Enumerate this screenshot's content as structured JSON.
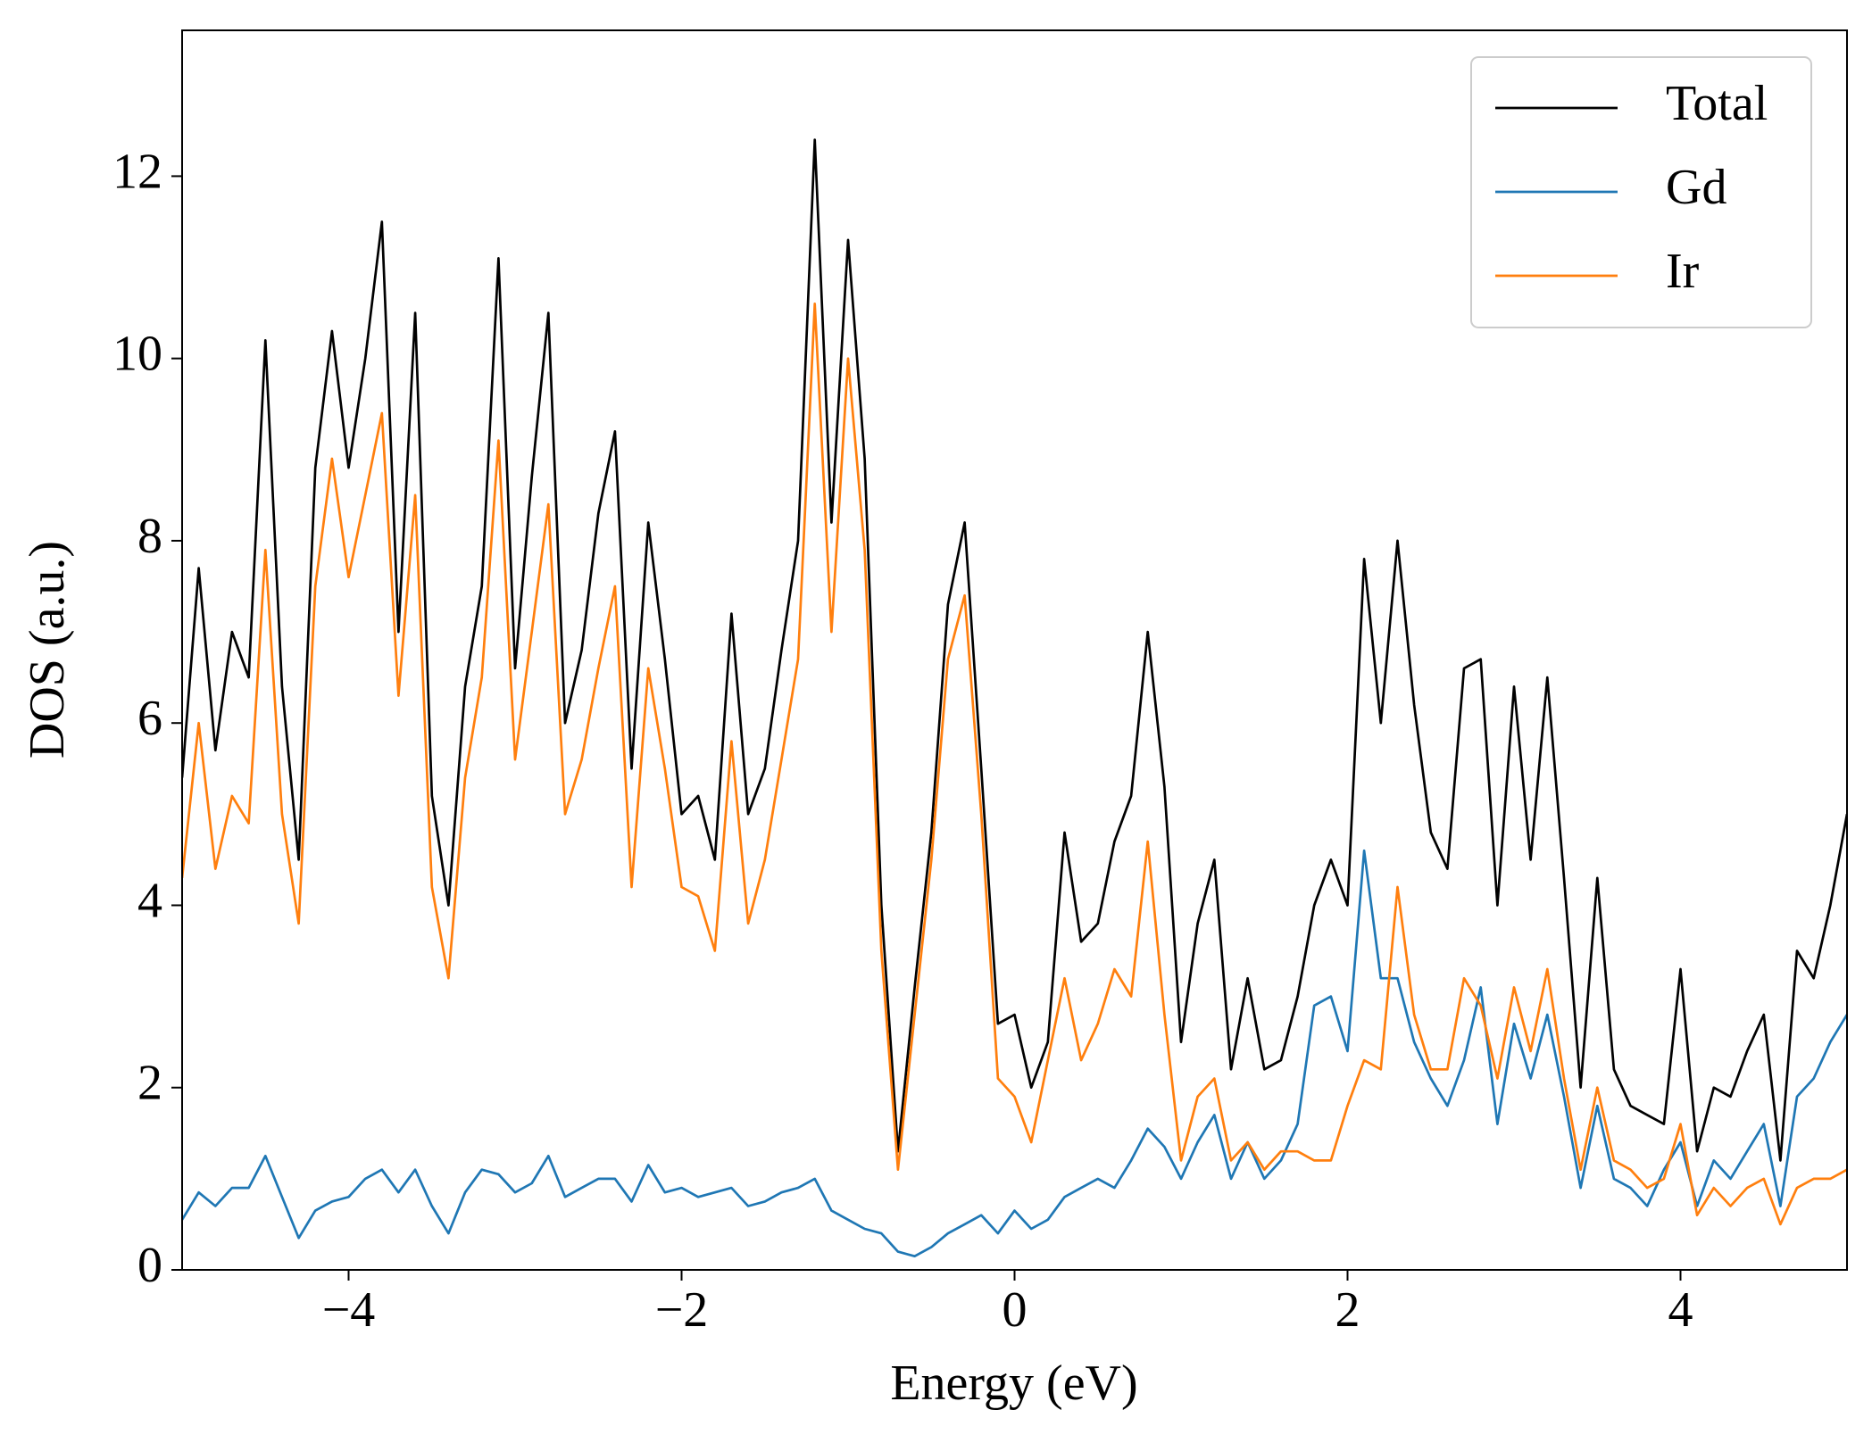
{
  "chart_data": {
    "type": "line",
    "xlabel": "Energy (eV)",
    "ylabel": "DOS (a.u.)",
    "x": [
      -5.0,
      -4.9,
      -4.8,
      -4.7,
      -4.6,
      -4.5,
      -4.4,
      -4.3,
      -4.2,
      -4.1,
      -4.0,
      -3.9,
      -3.8,
      -3.7,
      -3.6,
      -3.5,
      -3.4,
      -3.3,
      -3.2,
      -3.1,
      -3.0,
      -2.9,
      -2.8,
      -2.7,
      -2.6,
      -2.5,
      -2.4,
      -2.3,
      -2.2,
      -2.1,
      -2.0,
      -1.9,
      -1.8,
      -1.7,
      -1.6,
      -1.5,
      -1.4,
      -1.3,
      -1.2,
      -1.1,
      -1.0,
      -0.9,
      -0.8,
      -0.7,
      -0.6,
      -0.5,
      -0.4,
      -0.3,
      -0.2,
      -0.1,
      0.0,
      0.1,
      0.2,
      0.3,
      0.4,
      0.5,
      0.6,
      0.7,
      0.8,
      0.9,
      1.0,
      1.1,
      1.2,
      1.3,
      1.4,
      1.5,
      1.6,
      1.7,
      1.8,
      1.9,
      2.0,
      2.1,
      2.2,
      2.3,
      2.4,
      2.5,
      2.6,
      2.7,
      2.8,
      2.9,
      3.0,
      3.1,
      3.2,
      3.3,
      3.4,
      3.5,
      3.6,
      3.7,
      3.8,
      3.9,
      4.0,
      4.1,
      4.2,
      4.3,
      4.4,
      4.5,
      4.6,
      4.7,
      4.8,
      4.9,
      5.0
    ],
    "series": [
      {
        "name": "Total",
        "color": "#000000",
        "values": [
          5.4,
          7.7,
          5.7,
          7.0,
          6.5,
          10.2,
          6.4,
          4.5,
          8.8,
          10.3,
          8.8,
          10.0,
          11.5,
          7.0,
          10.5,
          5.2,
          4.0,
          6.4,
          7.5,
          11.1,
          6.6,
          8.7,
          10.5,
          6.0,
          6.8,
          8.3,
          9.2,
          5.5,
          8.2,
          6.7,
          5.0,
          5.2,
          4.5,
          7.2,
          5.0,
          5.5,
          6.8,
          8.0,
          12.4,
          8.2,
          11.3,
          8.9,
          4.0,
          1.3,
          3.1,
          4.8,
          7.3,
          8.2,
          5.5,
          2.7,
          2.8,
          2.0,
          2.5,
          4.8,
          3.6,
          3.8,
          4.7,
          5.2,
          7.0,
          5.3,
          2.5,
          3.8,
          4.5,
          2.2,
          3.2,
          2.2,
          2.3,
          3.0,
          4.0,
          4.5,
          4.0,
          7.8,
          6.0,
          8.0,
          6.2,
          4.8,
          4.4,
          6.6,
          6.7,
          4.0,
          6.4,
          4.5,
          6.5,
          4.3,
          2.0,
          4.3,
          2.2,
          1.8,
          1.7,
          1.6,
          3.3,
          1.3,
          2.0,
          1.9,
          2.4,
          2.8,
          1.2,
          3.5,
          3.2,
          4.0,
          5.0
        ]
      },
      {
        "name": "Gd",
        "color": "#1f77b4",
        "values": [
          0.55,
          0.85,
          0.7,
          0.9,
          0.9,
          1.25,
          0.8,
          0.35,
          0.65,
          0.75,
          0.8,
          1.0,
          1.1,
          0.85,
          1.1,
          0.7,
          0.4,
          0.85,
          1.1,
          1.05,
          0.85,
          0.95,
          1.25,
          0.8,
          0.9,
          1.0,
          1.0,
          0.75,
          1.15,
          0.85,
          0.9,
          0.8,
          0.85,
          0.9,
          0.7,
          0.75,
          0.85,
          0.9,
          1.0,
          0.65,
          0.55,
          0.45,
          0.4,
          0.2,
          0.15,
          0.25,
          0.4,
          0.5,
          0.6,
          0.4,
          0.65,
          0.45,
          0.55,
          0.8,
          0.9,
          1.0,
          0.9,
          1.2,
          1.55,
          1.35,
          1.0,
          1.4,
          1.7,
          1.0,
          1.4,
          1.0,
          1.2,
          1.6,
          2.9,
          3.0,
          2.4,
          4.6,
          3.2,
          3.2,
          2.5,
          2.1,
          1.8,
          2.3,
          3.1,
          1.6,
          2.7,
          2.1,
          2.8,
          1.9,
          0.9,
          1.8,
          1.0,
          0.9,
          0.7,
          1.1,
          1.4,
          0.7,
          1.2,
          1.0,
          1.3,
          1.6,
          0.7,
          1.9,
          2.1,
          2.5,
          2.8
        ]
      },
      {
        "name": "Ir",
        "color": "#ff7f0e",
        "values": [
          4.3,
          6.0,
          4.4,
          5.2,
          4.9,
          7.9,
          5.0,
          3.8,
          7.5,
          8.9,
          7.6,
          8.5,
          9.4,
          6.3,
          8.5,
          4.2,
          3.2,
          5.4,
          6.5,
          9.1,
          5.6,
          7.0,
          8.4,
          5.0,
          5.6,
          6.6,
          7.5,
          4.2,
          6.6,
          5.5,
          4.2,
          4.1,
          3.5,
          5.8,
          3.8,
          4.5,
          5.6,
          6.7,
          10.6,
          7.0,
          10.0,
          7.9,
          3.5,
          1.1,
          2.8,
          4.5,
          6.7,
          7.4,
          5.0,
          2.1,
          1.9,
          1.4,
          2.3,
          3.2,
          2.3,
          2.7,
          3.3,
          3.0,
          4.7,
          2.8,
          1.2,
          1.9,
          2.1,
          1.2,
          1.4,
          1.1,
          1.3,
          1.3,
          1.2,
          1.2,
          1.8,
          2.3,
          2.2,
          4.2,
          2.8,
          2.2,
          2.2,
          3.2,
          2.9,
          2.1,
          3.1,
          2.4,
          3.3,
          2.1,
          1.1,
          2.0,
          1.2,
          1.1,
          0.9,
          1.0,
          1.6,
          0.6,
          0.9,
          0.7,
          0.9,
          1.0,
          0.5,
          0.9,
          1.0,
          1.0,
          1.1
        ]
      }
    ],
    "xlim": [
      -5,
      5
    ],
    "ylim": [
      0,
      13.6
    ],
    "xticks": [
      {
        "value": -4,
        "label": "−4"
      },
      {
        "value": -2,
        "label": "−2"
      },
      0,
      2,
      4,
      {
        "value": 4,
        "label": "4"
      }
    ],
    "yticks": [
      0,
      2,
      4,
      6,
      8,
      10,
      12
    ],
    "legend": "upper right"
  }
}
